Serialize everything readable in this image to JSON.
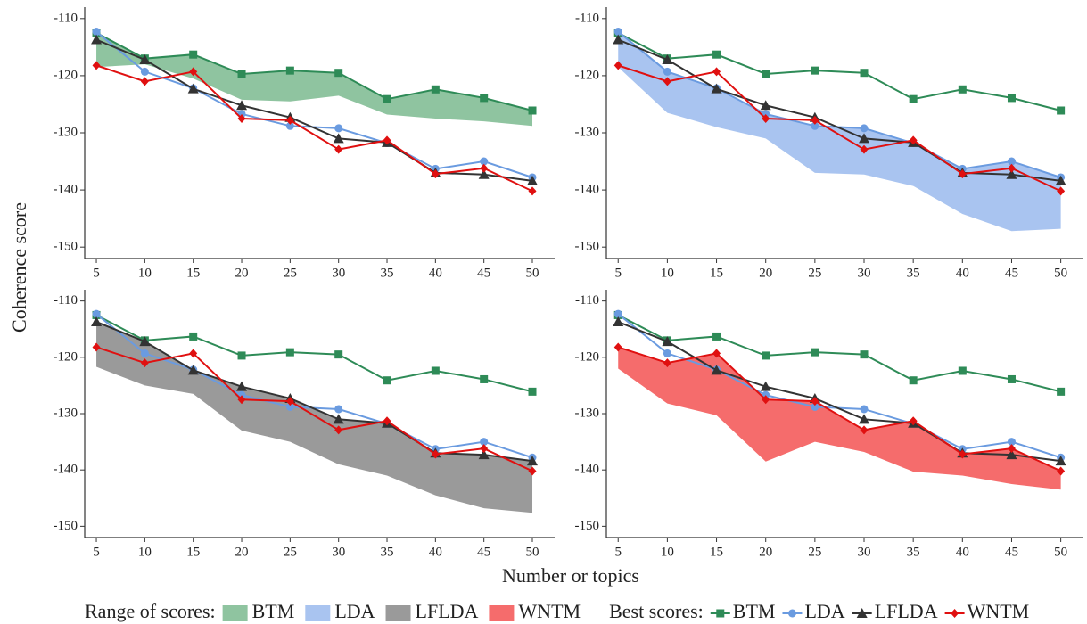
{
  "y_label": "Coherence score",
  "x_label": "Number or topics",
  "legend": {
    "range_title": "Range of scores:",
    "best_title": "Best scores:"
  },
  "chart_data": [
    {
      "type": "line",
      "x": [
        5,
        10,
        15,
        20,
        25,
        30,
        35,
        40,
        45,
        50
      ],
      "xlim": [
        3.8,
        52.3
      ],
      "xticks": [
        5,
        10,
        15,
        20,
        25,
        30,
        35,
        40,
        45,
        50
      ],
      "ylim": [
        -152,
        -108
      ],
      "yticks": [
        -110,
        -120,
        -130,
        -140,
        -150
      ],
      "range": {
        "name": "BTM",
        "color": "#8fc4a0",
        "values": [
          -118.5,
          -118,
          -120.5,
          -124.2,
          -124.5,
          -123.5,
          -126.8,
          -127.5,
          -128,
          -128.8
        ]
      },
      "series": [
        {
          "name": "BTM",
          "color": "#2e8b57",
          "marker": "square",
          "values": [
            -112.5,
            -117,
            -116.3,
            -119.7,
            -119.1,
            -119.5,
            -124.1,
            -122.4,
            -123.9,
            -126.1
          ]
        },
        {
          "name": "LDA",
          "color": "#6a9be0",
          "marker": "circle",
          "values": [
            -112.3,
            -119.3,
            -122.2,
            -126.7,
            -128.8,
            -129.2,
            -131.8,
            -136.3,
            -135,
            -137.8
          ]
        },
        {
          "name": "LFLDA",
          "color": "#333333",
          "marker": "triangle",
          "values": [
            -113.7,
            -117.2,
            -122.3,
            -125.2,
            -127.3,
            -131,
            -131.7,
            -137,
            -137.3,
            -138.4
          ]
        },
        {
          "name": "WNTM",
          "color": "#e01010",
          "marker": "diamond",
          "values": [
            -118.2,
            -121,
            -119.3,
            -127.5,
            -127.8,
            -132.9,
            -131.3,
            -137.2,
            -136.2,
            -140.2
          ]
        }
      ]
    },
    {
      "type": "line",
      "x": [
        5,
        10,
        15,
        20,
        25,
        30,
        35,
        40,
        45,
        50
      ],
      "xlim": [
        3.8,
        52.3
      ],
      "xticks": [
        5,
        10,
        15,
        20,
        25,
        30,
        35,
        40,
        45,
        50
      ],
      "ylim": [
        -152,
        -108
      ],
      "yticks": [
        -110,
        -120,
        -130,
        -140,
        -150
      ],
      "range": {
        "name": "LDA",
        "color": "#a9c4f0",
        "values": [
          -118.5,
          -126.5,
          -129,
          -131,
          -137,
          -137.3,
          -139.3,
          -144.2,
          -147.2,
          -146.8
        ]
      },
      "series": [
        {
          "color": "#2e8b57",
          "marker": "square",
          "values": [
            -112.5,
            -117,
            -116.3,
            -119.7,
            -119.1,
            -119.5,
            -124.1,
            -122.4,
            -123.9,
            -126.1
          ]
        },
        {
          "color": "#6a9be0",
          "marker": "circle",
          "values": [
            -112.3,
            -119.3,
            -122.2,
            -126.7,
            -128.8,
            -129.2,
            -131.8,
            -136.3,
            -135,
            -137.8
          ]
        },
        {
          "color": "#333333",
          "marker": "triangle",
          "values": [
            -113.7,
            -117.2,
            -122.3,
            -125.2,
            -127.3,
            -131,
            -131.7,
            -137,
            -137.3,
            -138.4
          ]
        },
        {
          "color": "#e01010",
          "marker": "diamond",
          "values": [
            -118.2,
            -121,
            -119.3,
            -127.5,
            -127.8,
            -132.9,
            -131.3,
            -137.2,
            -136.2,
            -140.2
          ]
        }
      ]
    },
    {
      "type": "line",
      "x": [
        5,
        10,
        15,
        20,
        25,
        30,
        35,
        40,
        45,
        50
      ],
      "xlim": [
        3.8,
        52.3
      ],
      "xticks": [
        5,
        10,
        15,
        20,
        25,
        30,
        35,
        40,
        45,
        50
      ],
      "ylim": [
        -152,
        -108
      ],
      "yticks": [
        -110,
        -120,
        -130,
        -140,
        -150
      ],
      "range": {
        "name": "LFLDA",
        "color": "#9a9a9a",
        "values": [
          -121.7,
          -125,
          -126.5,
          -133,
          -135,
          -139,
          -141,
          -144.5,
          -146.8,
          -147.6
        ]
      },
      "series": [
        {
          "color": "#2e8b57",
          "marker": "square",
          "values": [
            -112.5,
            -117,
            -116.3,
            -119.7,
            -119.1,
            -119.5,
            -124.1,
            -122.4,
            -123.9,
            -126.1
          ]
        },
        {
          "color": "#6a9be0",
          "marker": "circle",
          "values": [
            -112.3,
            -119.3,
            -122.2,
            -126.7,
            -128.8,
            -129.2,
            -131.8,
            -136.3,
            -135,
            -137.8
          ]
        },
        {
          "color": "#333333",
          "marker": "triangle",
          "values": [
            -113.7,
            -117.2,
            -122.3,
            -125.2,
            -127.3,
            -131,
            -131.7,
            -137,
            -137.3,
            -138.4
          ]
        },
        {
          "color": "#e01010",
          "marker": "diamond",
          "values": [
            -118.2,
            -121,
            -119.3,
            -127.5,
            -127.8,
            -132.9,
            -131.3,
            -137.2,
            -136.2,
            -140.2
          ]
        }
      ]
    },
    {
      "type": "line",
      "x": [
        5,
        10,
        15,
        20,
        25,
        30,
        35,
        40,
        45,
        50
      ],
      "xlim": [
        3.8,
        52.3
      ],
      "xticks": [
        5,
        10,
        15,
        20,
        25,
        30,
        35,
        40,
        45,
        50
      ],
      "ylim": [
        -152,
        -108
      ],
      "yticks": [
        -110,
        -120,
        -130,
        -140,
        -150
      ],
      "range": {
        "name": "WNTM",
        "color": "#f56c6c",
        "values": [
          -122,
          -128.2,
          -130.3,
          -138.5,
          -135,
          -136.8,
          -140.3,
          -141,
          -142.5,
          -143.5
        ]
      },
      "series": [
        {
          "color": "#2e8b57",
          "marker": "square",
          "values": [
            -112.5,
            -117,
            -116.3,
            -119.7,
            -119.1,
            -119.5,
            -124.1,
            -122.4,
            -123.9,
            -126.1
          ]
        },
        {
          "color": "#6a9be0",
          "marker": "circle",
          "values": [
            -112.3,
            -119.3,
            -122.2,
            -126.7,
            -128.8,
            -129.2,
            -131.8,
            -136.3,
            -135,
            -137.8
          ]
        },
        {
          "color": "#333333",
          "marker": "triangle",
          "values": [
            -113.7,
            -117.2,
            -122.3,
            -125.2,
            -127.3,
            -131,
            -131.7,
            -137,
            -137.3,
            -138.4
          ]
        },
        {
          "color": "#e01010",
          "marker": "diamond",
          "values": [
            -118.2,
            -121,
            -119.3,
            -127.5,
            -127.8,
            -132.9,
            -131.3,
            -137.2,
            -136.2,
            -140.2
          ]
        }
      ]
    }
  ]
}
